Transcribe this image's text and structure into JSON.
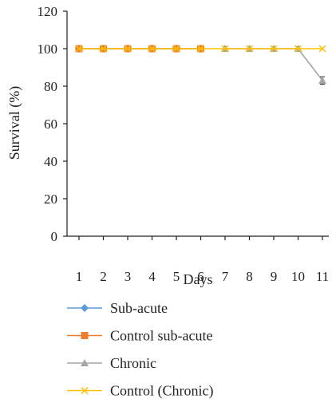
{
  "chart_data": {
    "type": "line",
    "title": "",
    "xlabel": "Days",
    "ylabel": "Survival (%)",
    "categories": [
      "1",
      "2",
      "3",
      "4",
      "5",
      "6",
      "7",
      "8",
      "9",
      "10",
      "11"
    ],
    "ylim": [
      0,
      120
    ],
    "yticks": [
      0,
      20,
      40,
      60,
      80,
      100,
      120
    ],
    "grid": false,
    "legend_position": "bottom",
    "series": [
      {
        "name": "Sub-acute",
        "color": "#5b9bd5",
        "marker": "diamond",
        "x": [
          1,
          2,
          3,
          4,
          5,
          6
        ],
        "values": [
          100,
          100,
          100,
          100,
          100,
          100
        ]
      },
      {
        "name": "Control sub-acute",
        "color": "#ed7d31",
        "marker": "square",
        "x": [
          1,
          2,
          3,
          4,
          5,
          6
        ],
        "values": [
          100,
          100,
          100,
          100,
          100,
          100
        ]
      },
      {
        "name": "Chronic",
        "color": "#a5a5a5",
        "marker": "triangle",
        "x": [
          7,
          8,
          9,
          10,
          11
        ],
        "values": [
          100,
          100,
          100,
          100,
          83
        ],
        "error": [
          1,
          1,
          1,
          1,
          2
        ]
      },
      {
        "name": "Control (Chronic)",
        "color": "#ffc000",
        "marker": "x",
        "x": [
          1,
          2,
          3,
          4,
          5,
          6,
          7,
          8,
          9,
          10,
          11
        ],
        "values": [
          100,
          100,
          100,
          100,
          100,
          100,
          100,
          100,
          100,
          100,
          100
        ]
      }
    ]
  }
}
